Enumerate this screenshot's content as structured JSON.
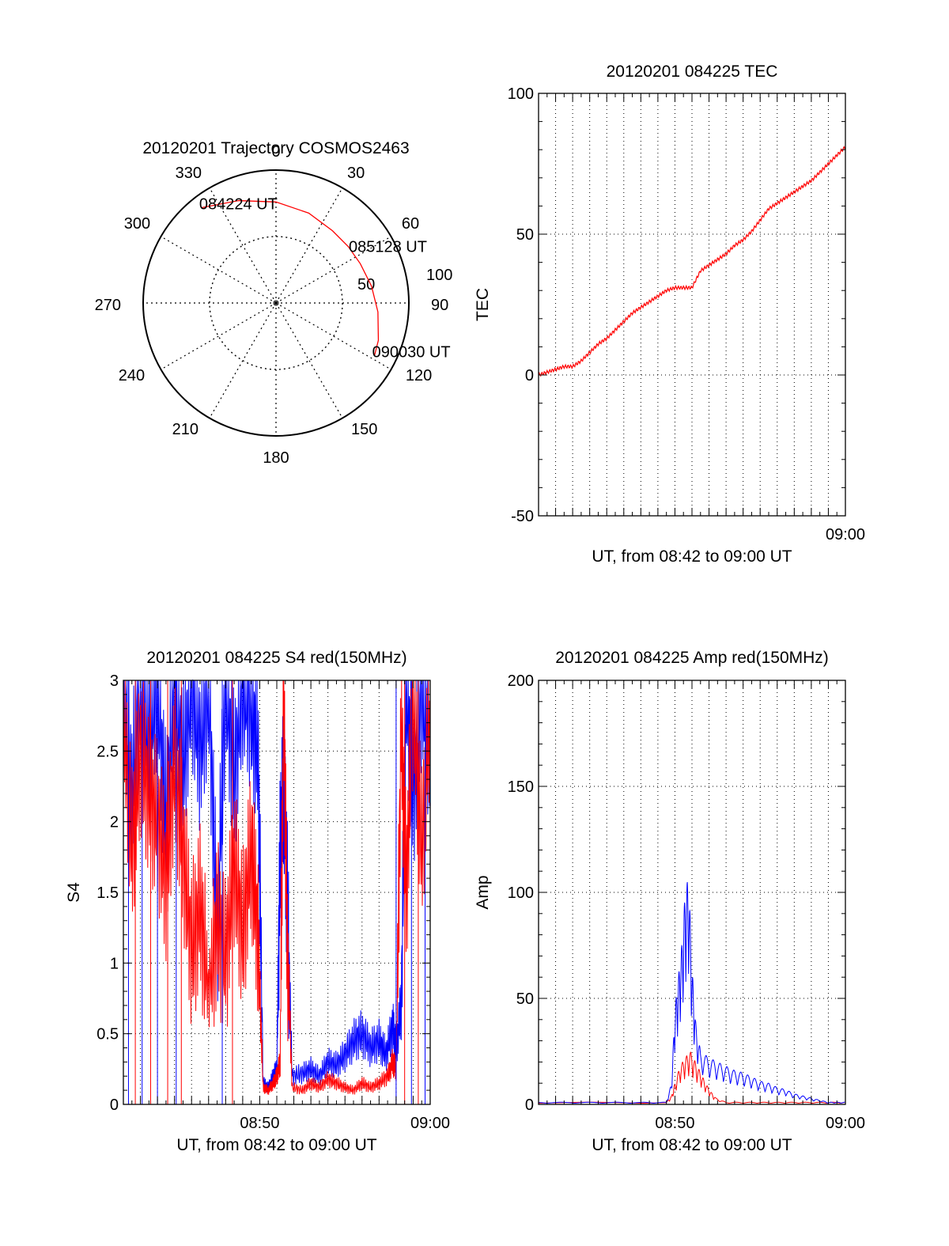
{
  "colors": {
    "red": "#ff0000",
    "blue": "#0000ff",
    "axis": "#000000",
    "grid": "#000000"
  },
  "chart_data": [
    {
      "type": "polar",
      "title": "20120201 Trajectory COSMOS2463",
      "angle_labels": [
        "0",
        "30",
        "60",
        "90",
        "120",
        "150",
        "180",
        "210",
        "240",
        "270",
        "300",
        "330"
      ],
      "angles_deg": [
        0,
        30,
        60,
        90,
        120,
        150,
        180,
        210,
        240,
        270,
        300,
        330
      ],
      "radius_labels": [
        "50",
        "100"
      ],
      "radius_values": [
        50,
        100
      ],
      "r_max": 100,
      "grid": true,
      "series": [
        {
          "color": "red",
          "points": [
            {
              "az": 322,
              "r": 91
            },
            {
              "az": 340,
              "r": 82
            },
            {
              "az": 0,
              "r": 76
            },
            {
              "az": 20,
              "r": 72
            },
            {
              "az": 38,
              "r": 69
            },
            {
              "az": 52,
              "r": 69
            },
            {
              "az": 65,
              "r": 70
            },
            {
              "az": 80,
              "r": 73
            },
            {
              "az": 95,
              "r": 77
            },
            {
              "az": 110,
              "r": 82
            },
            {
              "az": 118,
              "r": 84
            }
          ]
        }
      ],
      "annotations": [
        {
          "text": "084224 UT",
          "az": 322,
          "r": 91
        },
        {
          "text": "085128 UT",
          "az": 55,
          "r": 69
        },
        {
          "text": "090030 UT",
          "az": 118,
          "r": 84
        }
      ]
    },
    {
      "type": "line",
      "title": "20120201 084225 TEC",
      "xlabel": "UT, from 08:42 to 09:00 UT",
      "ylabel": "TEC",
      "xlim": [
        0,
        18
      ],
      "ylim": [
        -50,
        100
      ],
      "yticks": [
        -50,
        0,
        50,
        100
      ],
      "xtick_labels": [
        {
          "x": 18,
          "label": "09:00"
        }
      ],
      "grid": true,
      "series": [
        {
          "color": "red",
          "x": [
            0,
            0.5,
            1,
            1.5,
            2,
            2.5,
            3,
            3.5,
            4,
            4.5,
            5,
            5.5,
            6,
            6.5,
            7,
            7.5,
            8,
            8.5,
            9,
            9.5,
            10,
            10.5,
            11,
            11.5,
            12,
            12.5,
            13,
            13.5,
            14,
            14.5,
            15,
            15.5,
            16,
            16.5,
            17,
            17.5,
            18
          ],
          "y": [
            0,
            1,
            2,
            3,
            3,
            5,
            8,
            11,
            13,
            16,
            19,
            22,
            24,
            26,
            28,
            30,
            31,
            31,
            31,
            37,
            39,
            41,
            43,
            46,
            48,
            51,
            55,
            59,
            61,
            63,
            65,
            67,
            69,
            72,
            75,
            78,
            81
          ]
        }
      ]
    },
    {
      "type": "line",
      "title": "20120201 084225 S4 red(150MHz)",
      "xlabel": "UT, from 08:42 to 09:00 UT",
      "ylabel": "S4",
      "xlim": [
        0,
        18
      ],
      "ylim": [
        0,
        3
      ],
      "yticks": [
        0,
        0.5,
        1,
        1.5,
        2,
        2.5,
        3
      ],
      "ytick_labels": [
        "0",
        "0.5",
        "1",
        "1.5",
        "2",
        "2.5",
        "3"
      ],
      "xtick_labels": [
        {
          "x": 8,
          "label": "08:50"
        },
        {
          "x": 18,
          "label": "09:00"
        }
      ],
      "grid": true,
      "series": [
        {
          "color": "blue",
          "x": [
            0,
            0.5,
            1,
            1.5,
            2,
            2.5,
            3,
            3.5,
            4,
            4.5,
            5,
            5.5,
            6,
            6.5,
            7,
            7.5,
            7.9,
            8.2,
            8.5,
            8.8,
            9.0,
            9.2,
            9.4,
            9.6,
            9.9,
            10.5,
            11,
            11.5,
            12,
            12.5,
            13,
            13.5,
            14,
            14.5,
            15,
            15.4,
            15.8,
            16,
            16.3,
            16.6,
            17,
            17.5,
            18
          ],
          "y": [
            3,
            2.2,
            3,
            2.6,
            3,
            2.0,
            3,
            2.4,
            3,
            2.5,
            3,
            1.2,
            3,
            2.3,
            3,
            2.8,
            2.5,
            0.15,
            0.12,
            0.2,
            0.25,
            1.8,
            2.3,
            1.5,
            0.2,
            0.22,
            0.25,
            0.2,
            0.3,
            0.28,
            0.35,
            0.45,
            0.5,
            0.4,
            0.45,
            0.35,
            0.55,
            0.4,
            0.7,
            3,
            2.2,
            3,
            2.5
          ]
        },
        {
          "color": "red",
          "x": [
            0,
            0.5,
            1,
            1.5,
            2,
            2.5,
            3,
            3.5,
            4,
            4.5,
            5,
            5.5,
            6,
            6.5,
            7,
            7.5,
            7.9,
            8.2,
            8.5,
            8.8,
            9.0,
            9.2,
            9.4,
            9.6,
            9.9,
            10.5,
            11,
            11.5,
            12,
            12.5,
            13,
            13.5,
            14,
            14.5,
            15,
            15.5,
            15.8,
            16,
            16.3,
            16.6,
            17,
            17.5,
            18
          ],
          "y": [
            2.8,
            1.8,
            2.5,
            2.2,
            2.0,
            1.6,
            2.4,
            1.8,
            1.1,
            1.4,
            0.8,
            1.3,
            1.0,
            1.7,
            1.2,
            1.8,
            1.2,
            0.12,
            0.1,
            0.15,
            0.2,
            0.3,
            3,
            1.2,
            0.12,
            0.1,
            0.15,
            0.12,
            0.18,
            0.15,
            0.12,
            0.1,
            0.15,
            0.12,
            0.15,
            0.2,
            0.3,
            0.25,
            2.7,
            1.5,
            2.9,
            1.8,
            2.8
          ]
        }
      ]
    },
    {
      "type": "line",
      "title": "20120201 084225 Amp red(150MHz)",
      "xlabel": "UT, from 08:42 to 09:00 UT",
      "ylabel": "Amp",
      "xlim": [
        0,
        18
      ],
      "ylim": [
        0,
        200
      ],
      "yticks": [
        0,
        50,
        100,
        150,
        200
      ],
      "xtick_labels": [
        {
          "x": 8,
          "label": "08:50"
        },
        {
          "x": 18,
          "label": "09:00"
        }
      ],
      "grid": true,
      "series": [
        {
          "color": "red",
          "x": [
            0,
            7.5,
            7.8,
            8.0,
            8.3,
            8.6,
            8.9,
            9.2,
            9.5,
            9.8,
            10.1,
            10.4,
            11,
            12,
            13,
            14,
            15,
            16,
            17,
            18
          ],
          "y": [
            1,
            1,
            4,
            10,
            18,
            22,
            25,
            20,
            15,
            10,
            6,
            3,
            1,
            1,
            1,
            1,
            1,
            1,
            1,
            1
          ]
        },
        {
          "color": "blue",
          "x": [
            0,
            2,
            4,
            6,
            7.5,
            7.8,
            8.0,
            8.2,
            8.4,
            8.6,
            8.8,
            9.0,
            9.2,
            9.5,
            10,
            10.5,
            11,
            11.5,
            12,
            12.5,
            13,
            13.5,
            14,
            14.5,
            15,
            15.5,
            16,
            16.5,
            17,
            17.5,
            18
          ],
          "y": [
            1,
            1,
            1,
            1,
            1,
            10,
            45,
            60,
            75,
            100,
            108,
            65,
            40,
            25,
            22,
            20,
            18,
            16,
            15,
            13,
            11,
            10,
            8,
            7,
            5,
            4,
            3,
            2,
            1,
            1,
            1
          ]
        }
      ]
    }
  ]
}
